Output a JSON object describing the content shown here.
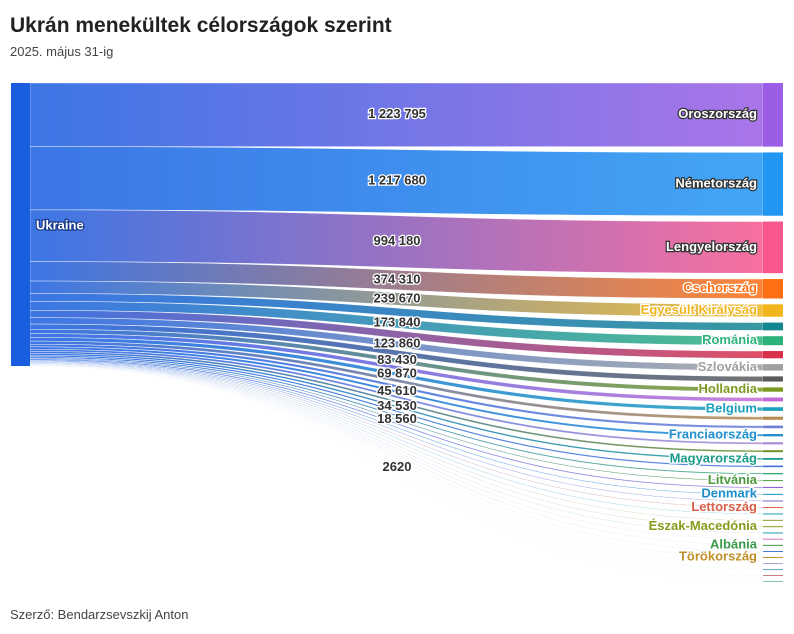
{
  "chart_data": {
    "type": "sankey",
    "title": "Ukrán menekültek célországok szerint",
    "subtitle": "2025. május 31-ig",
    "footer": "Szerző: Bendarzsevszkij Anton",
    "source": "Ukraine",
    "source_color": "#1a5ee0",
    "categories": [
      "Oroszország",
      "Németország",
      "Lengyelország",
      "Csehország",
      "Egyesült Királyság",
      null,
      "Románia",
      null,
      "Szlovákia",
      null,
      "Hollandia",
      null,
      "Belgium",
      null,
      null,
      "Franciaország",
      null,
      null,
      "Magyarország",
      null,
      null,
      "Litvánia",
      null,
      "Denmark",
      null,
      "Lettország",
      null,
      null,
      "Észak-Macedónia",
      null,
      null,
      "Albánia",
      null,
      "Törökország",
      null,
      null,
      null,
      null
    ],
    "values": [
      1223795,
      1217680,
      994180,
      374310,
      239670,
      150000,
      173840,
      140000,
      123860,
      100000,
      83430,
      75000,
      69870,
      60000,
      50000,
      45610,
      42000,
      38000,
      34530,
      30000,
      26000,
      18560,
      22000,
      16000,
      14000,
      12000,
      11000,
      10000,
      9000,
      8000,
      7000,
      6000,
      5000,
      4000,
      3500,
      2620,
      2000,
      1500
    ],
    "value_labels": [
      "1 223 795",
      "1 217 680",
      "994 180",
      "374 310",
      "239 670",
      null,
      "173 840",
      null,
      "123 860",
      null,
      "83 430",
      null,
      "69 870",
      null,
      null,
      "45 610",
      null,
      null,
      "34 530",
      null,
      null,
      "18 560",
      null,
      null,
      null,
      null,
      null,
      null,
      null,
      null,
      null,
      null,
      null,
      null,
      null,
      "2620",
      null,
      null
    ],
    "colors": [
      "#9b5de5",
      "#2196f3",
      "#f7568f",
      "#ff7014",
      "#f2b61d",
      "#14868f",
      "#2db37a",
      "#d9304c",
      "#a0a0a0",
      "#5a5a5a",
      "#7a9a20",
      "#c06bd6",
      "#1a9fbd",
      "#b58a50",
      "#6b7fd6",
      "#1f8fd0",
      "#a98bd6",
      "#6e8e2a",
      "#1a9a8a",
      "#3b6fd6",
      "#3aa676",
      "#4a9a3a",
      "#8a6bd6",
      "#1c8fc9",
      "#7070d0",
      "#d9604a",
      "#1aa0c0",
      "#9a9a30",
      "#8a9a1c",
      "#20a0b0",
      "#d070c0",
      "#3a9a4a",
      "#4a7ad0",
      "#c0902a",
      "#a0a0d0",
      "#60a0d0",
      "#d08080",
      "#80c0a0"
    ]
  }
}
